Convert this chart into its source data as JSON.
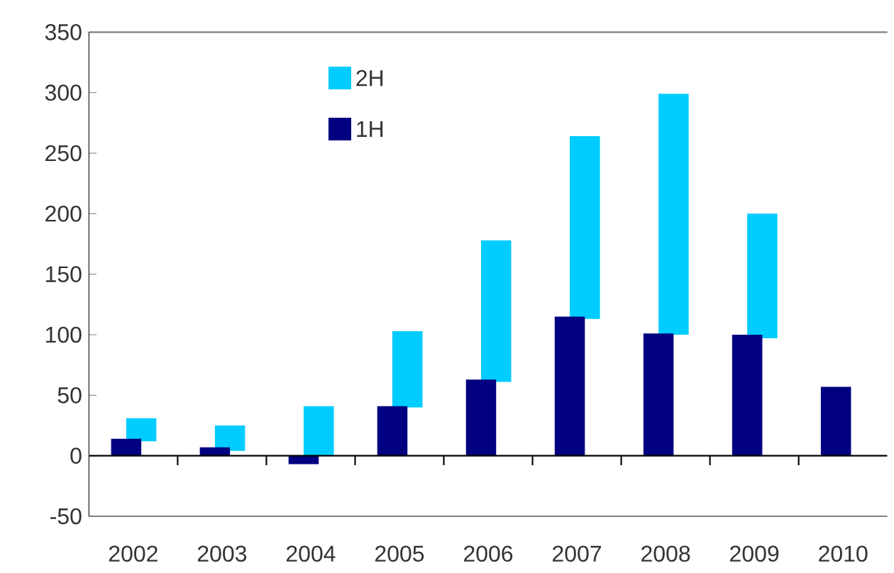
{
  "chart_data": {
    "type": "bar",
    "categories": [
      "2002",
      "2003",
      "2004",
      "2005",
      "2006",
      "2007",
      "2008",
      "2009",
      "2010"
    ],
    "series": [
      {
        "name": "2H",
        "color": "#00ccff",
        "values": [
          19,
          21,
          41,
          63,
          117,
          151,
          199,
          103,
          null
        ],
        "base": [
          12,
          4,
          0,
          40,
          61,
          113,
          100,
          97,
          null
        ]
      },
      {
        "name": "1H",
        "color": "#000080",
        "values": [
          14,
          7,
          -7,
          41,
          63,
          115,
          101,
          100,
          57
        ]
      }
    ],
    "ylim": [
      -50,
      350
    ],
    "yticks": [
      -50,
      0,
      50,
      100,
      150,
      200,
      250,
      300,
      350
    ],
    "ref_lines": [
      {
        "axis": "y",
        "value": 0,
        "color": "#000000"
      }
    ],
    "legend": "top"
  }
}
